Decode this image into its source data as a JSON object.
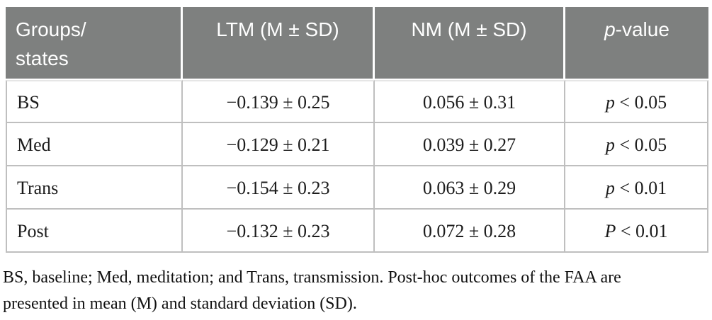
{
  "colors": {
    "header_bg": "#7e807f",
    "header_text": "#ffffff",
    "grid_border": "#bfbfbf",
    "header_underline_border": "#e6e6e6",
    "body_text": "#1c1c1c"
  },
  "table": {
    "header": {
      "col1": "Groups/\nstates",
      "col2": "LTM (M ± SD)",
      "col3": "NM (M ± SD)",
      "col4_italic": "p",
      "col4_rest": "-value"
    },
    "rows": [
      {
        "group": "BS",
        "ltm": "−0.139 ± 0.25",
        "nm": "0.056 ± 0.31",
        "p_letter": "p",
        "p_rest": " < 0.05"
      },
      {
        "group": "Med",
        "ltm": "−0.129 ± 0.21",
        "nm": "0.039 ± 0.27",
        "p_letter": "p",
        "p_rest": " < 0.05"
      },
      {
        "group": "Trans",
        "ltm": "−0.154 ± 0.23",
        "nm": "0.063 ± 0.29",
        "p_letter": "p",
        "p_rest": " < 0.01"
      },
      {
        "group": "Post",
        "ltm": "−0.132 ± 0.23",
        "nm": "0.072 ± 0.28",
        "p_letter": "P",
        "p_rest": " < 0.01"
      }
    ]
  },
  "footnote": "BS, baseline; Med, meditation; and Trans, transmission. Post-hoc outcomes of the FAA are\npresented in mean (M) and standard deviation (SD)."
}
